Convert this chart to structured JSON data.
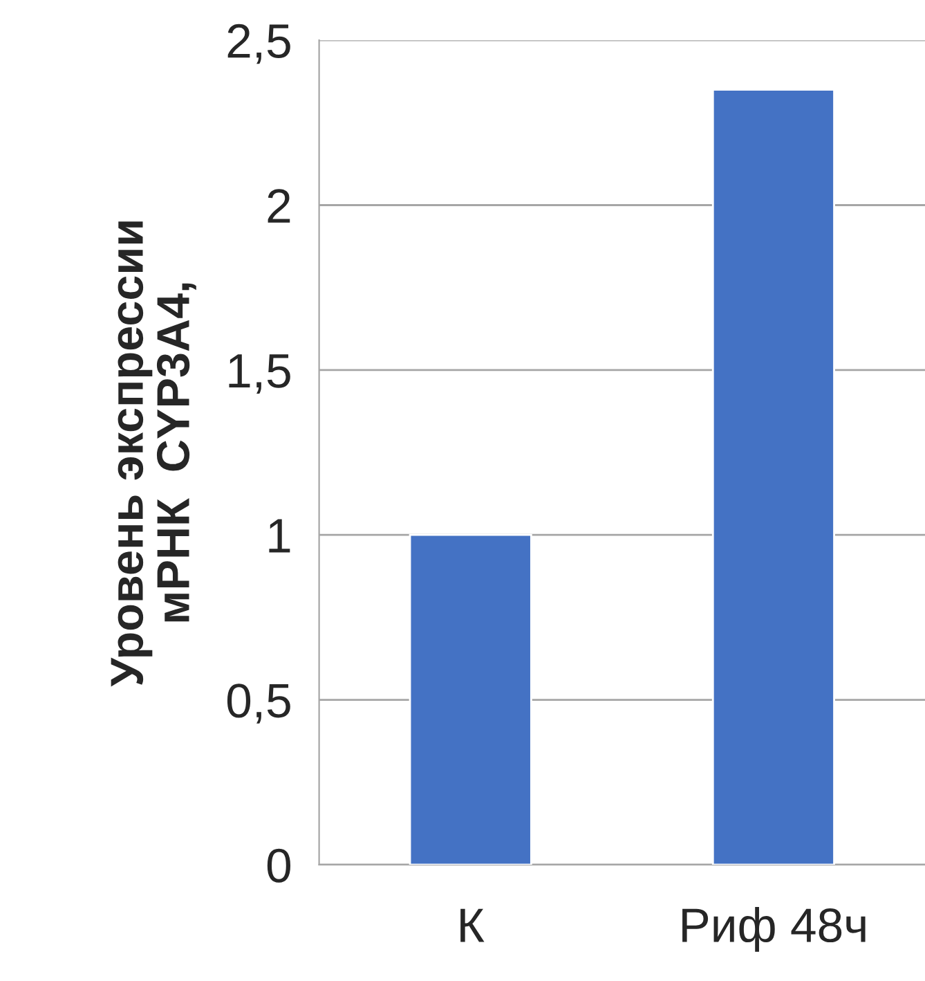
{
  "chart_data": {
    "type": "bar",
    "ylabel": "Уровень экспрессии\nмРНК  CYP3A4,",
    "categories": [
      "К",
      "Риф 48ч"
    ],
    "values": [
      1,
      2.35
    ],
    "color": "#4472c4",
    "ylim": [
      0,
      2.5
    ],
    "yticks": [
      0,
      {
        "value": 0.5,
        "label": "0,5"
      },
      1,
      {
        "value": 1.5,
        "label": "1,5"
      },
      2,
      {
        "value": 2.5,
        "label": "2,5"
      }
    ],
    "grid": "y",
    "legend": false
  }
}
